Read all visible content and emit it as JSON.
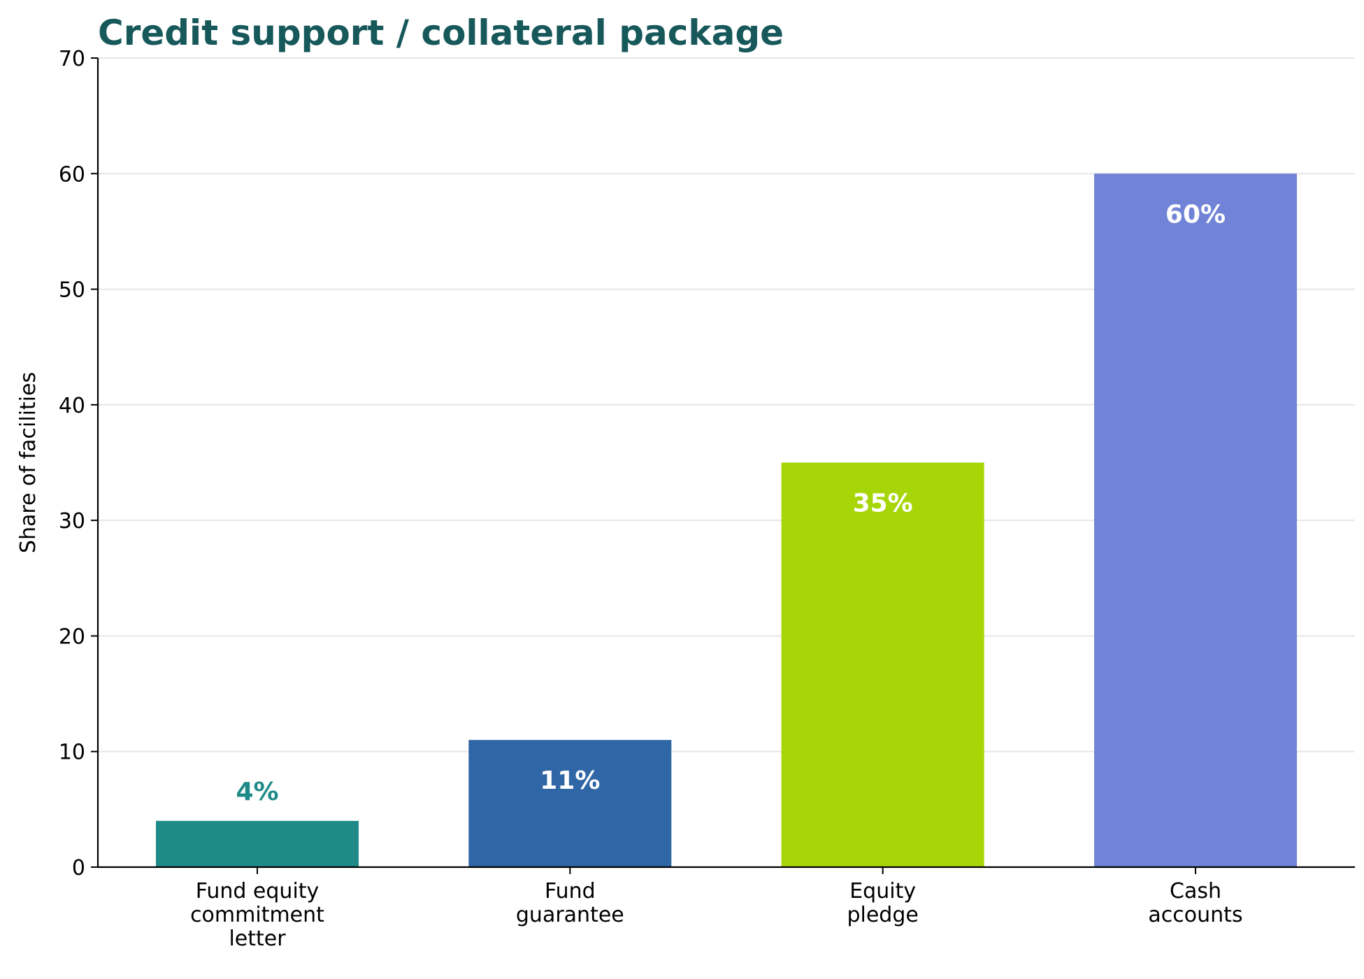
{
  "chart_data": {
    "type": "bar",
    "title": "Credit support / collateral package",
    "xlabel": "",
    "ylabel": "Share of facilities",
    "ylim": [
      0,
      70
    ],
    "yticks": [
      0,
      10,
      20,
      30,
      40,
      50,
      60,
      70
    ],
    "grid": "horizontal",
    "categories": [
      [
        "Fund equity",
        "commitment",
        "letter"
      ],
      [
        "Fund",
        "guarantee"
      ],
      [
        "Equity",
        "pledge"
      ],
      [
        "Cash",
        "accounts"
      ]
    ],
    "values": [
      4,
      11,
      35,
      60
    ],
    "data_labels": [
      "4%",
      "11%",
      "35%",
      "60%"
    ],
    "colors": [
      "#1f8a87",
      "#2f66a6",
      "#a7d608",
      "#7083d6"
    ],
    "data_label_colors": [
      "#1f8a87",
      "#ffffff",
      "#ffffff",
      "#ffffff"
    ],
    "title_color": "#17585b"
  }
}
